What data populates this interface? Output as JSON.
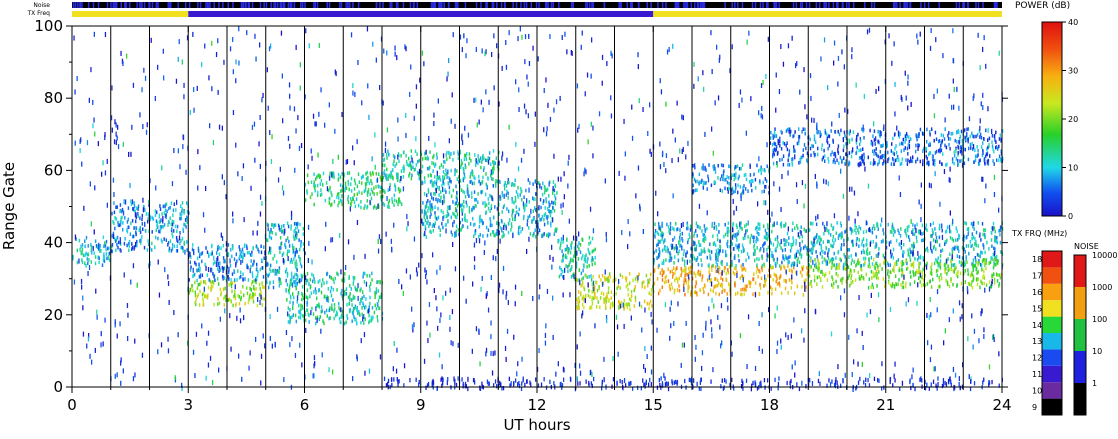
{
  "chart_data": {
    "type": "heatmap",
    "plot": {
      "xlabel": "UT hours",
      "ylabel": "Range Gate",
      "xlim": [
        0,
        24
      ],
      "ylim": [
        0,
        100
      ],
      "x_ticks": [
        "0",
        "3",
        "6",
        "9",
        "12",
        "15",
        "18",
        "21",
        "24"
      ],
      "x_tick_values": [
        0,
        3,
        6,
        9,
        12,
        15,
        18,
        21,
        24
      ],
      "y_ticks": [
        "0",
        "20",
        "40",
        "60",
        "80",
        "100"
      ],
      "y_tick_values": [
        0,
        20,
        40,
        60,
        80,
        100
      ],
      "scan_boundaries_hours": [
        1,
        2,
        3,
        4,
        5,
        6,
        7,
        8,
        9,
        10,
        11,
        12,
        13,
        14,
        15,
        16,
        17,
        18,
        19,
        20,
        21,
        22,
        23,
        24
      ],
      "echo_bands": [
        {
          "start": 0.0,
          "end": 1.0,
          "gate_from": 34,
          "gate_to": 42,
          "power": 10
        },
        {
          "start": 1.0,
          "end": 3.0,
          "gate_from": 38,
          "gate_to": 52,
          "power": 8
        },
        {
          "start": 3.0,
          "end": 5.0,
          "gate_from": 23,
          "gate_to": 30,
          "power": 22
        },
        {
          "start": 3.0,
          "end": 5.0,
          "gate_from": 30,
          "gate_to": 40,
          "power": 8
        },
        {
          "start": 5.0,
          "end": 6.0,
          "gate_from": 28,
          "gate_to": 46,
          "power": 10
        },
        {
          "start": 6.0,
          "end": 8.5,
          "gate_from": 50,
          "gate_to": 60,
          "power": 14
        },
        {
          "start": 5.5,
          "end": 8.0,
          "gate_from": 18,
          "gate_to": 32,
          "power": 12
        },
        {
          "start": 8.0,
          "end": 11.0,
          "gate_from": 58,
          "gate_to": 66,
          "power": 12
        },
        {
          "start": 9.0,
          "end": 12.5,
          "gate_from": 42,
          "gate_to": 58,
          "power": 10
        },
        {
          "start": 12.5,
          "end": 13.5,
          "gate_from": 30,
          "gate_to": 42,
          "power": 12
        },
        {
          "start": 13.0,
          "end": 15.0,
          "gate_from": 22,
          "gate_to": 32,
          "power": 24
        },
        {
          "start": 15.0,
          "end": 19.0,
          "gate_from": 26,
          "gate_to": 34,
          "power": 28
        },
        {
          "start": 15.0,
          "end": 24.0,
          "gate_from": 34,
          "gate_to": 46,
          "power": 10
        },
        {
          "start": 19.0,
          "end": 24.0,
          "gate_from": 28,
          "gate_to": 36,
          "power": 20
        },
        {
          "start": 16.0,
          "end": 18.0,
          "gate_from": 54,
          "gate_to": 62,
          "power": 8
        },
        {
          "start": 18.0,
          "end": 24.0,
          "gate_from": 62,
          "gate_to": 72,
          "power": 6
        }
      ]
    },
    "top_strips": {
      "noise_label": "Noise",
      "txfreq_label": "TX Freq",
      "tx_freq_segments": [
        {
          "start": 0,
          "end": 3,
          "freq_mhz": 15
        },
        {
          "start": 3,
          "end": 15,
          "freq_mhz": 11
        },
        {
          "start": 15,
          "end": 24,
          "freq_mhz": 15
        }
      ]
    },
    "power_scale": {
      "title": "POWER (dB)",
      "range": [
        0,
        40
      ],
      "ticks": [
        "0",
        "10",
        "20",
        "30",
        "40"
      ],
      "tick_values": [
        0,
        10,
        20,
        30,
        40
      ]
    },
    "txfreq_scale": {
      "title": "TX FRQ (MHz)",
      "ticks": [
        "9",
        "10",
        "11",
        "12",
        "13",
        "14",
        "15",
        "16",
        "17",
        "18"
      ],
      "colors": [
        "#000000",
        "#6a2aa0",
        "#3a1ad0",
        "#1a4af0",
        "#18b8e8",
        "#28d838",
        "#f0e020",
        "#f8a010",
        "#f05010",
        "#e01818"
      ]
    },
    "noise_scale": {
      "title": "NOISE",
      "ticks": [
        "1",
        "10",
        "100",
        "1000",
        "10000"
      ],
      "colors": [
        "#000000",
        "#2020e0",
        "#20c040",
        "#f0a010",
        "#e01818"
      ]
    }
  }
}
